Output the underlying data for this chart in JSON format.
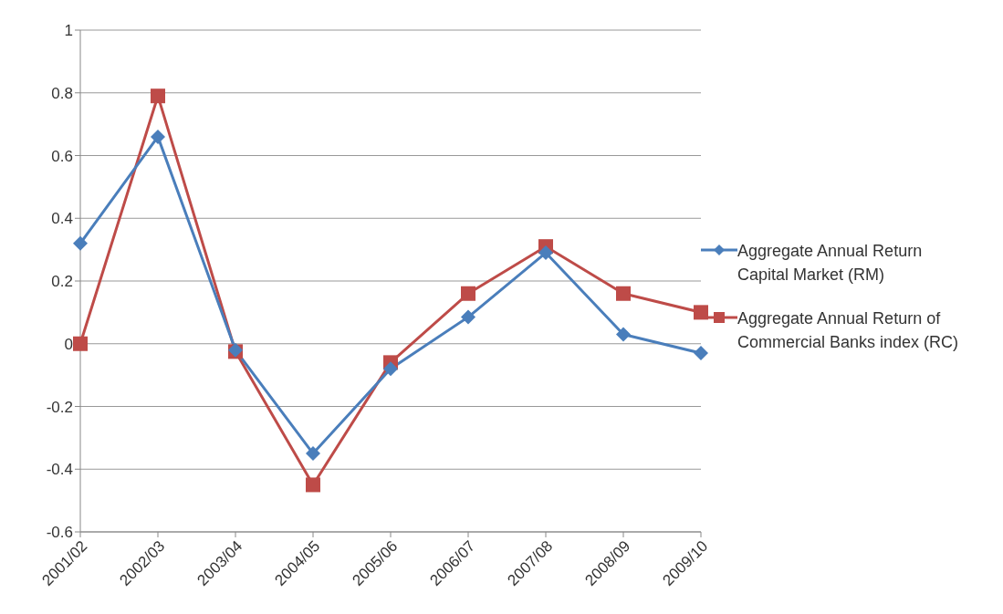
{
  "chart_data": {
    "type": "line",
    "categories": [
      "2001/02",
      "2002/03",
      "2003/04",
      "2004/05",
      "2005/06",
      "2006/07",
      "2007/08",
      "2008/09",
      "2009/10"
    ],
    "series": [
      {
        "name": "Aggregate Annual Return Capital Market (RM)",
        "color": "#4a7ebb",
        "marker": "diamond",
        "values": [
          0.32,
          0.66,
          -0.02,
          -0.35,
          -0.08,
          0.085,
          0.29,
          0.03,
          -0.03
        ]
      },
      {
        "name": "Aggregate Annual Return of Commercial Banks index (RC)",
        "color": "#be4b48",
        "marker": "square",
        "values": [
          0,
          0.79,
          -0.025,
          -0.45,
          -0.06,
          0.16,
          0.31,
          0.16,
          0.1
        ]
      }
    ],
    "ylim": [
      -0.6,
      1
    ],
    "yticks": [
      -0.6,
      -0.4,
      -0.2,
      0,
      0.2,
      0.4,
      0.6,
      0.8,
      1
    ],
    "grid": "y",
    "legend": "right"
  }
}
